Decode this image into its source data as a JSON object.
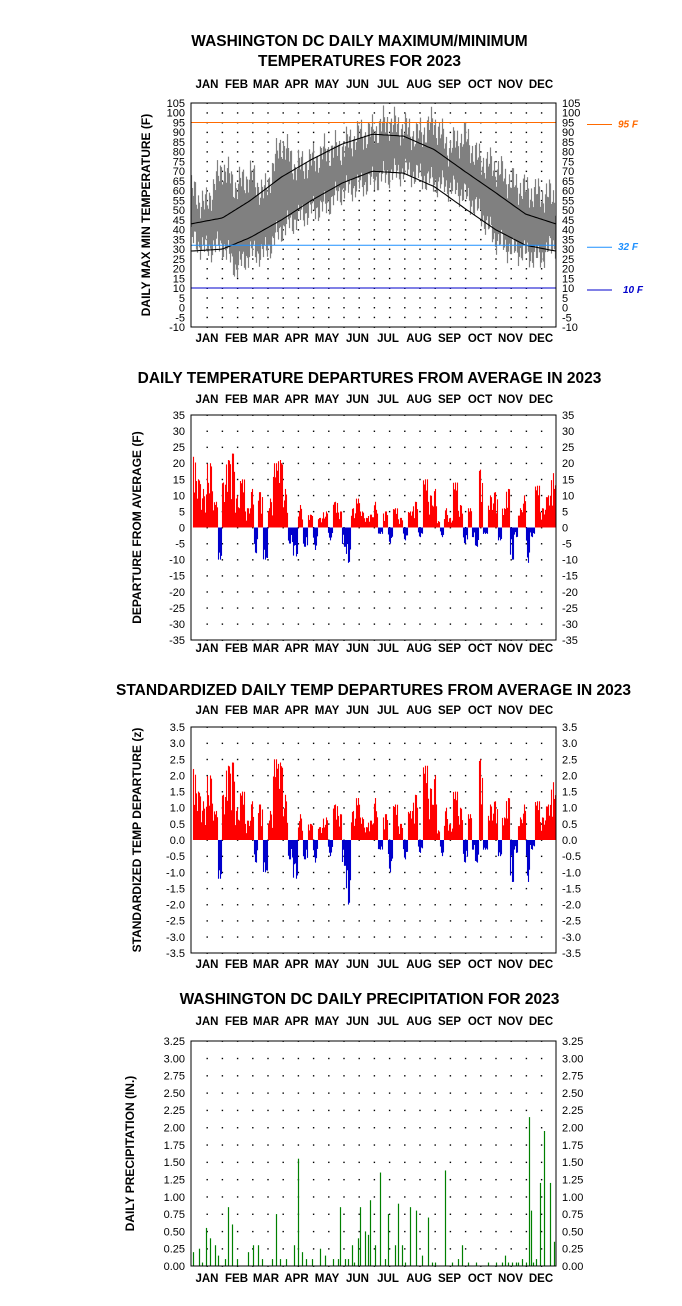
{
  "months": [
    "JAN",
    "FEB",
    "MAR",
    "APR",
    "MAY",
    "JUN",
    "JUL",
    "AUG",
    "SEP",
    "OCT",
    "NOV",
    "DEC"
  ],
  "colors": {
    "temp_band": "#808080",
    "normals": "#000000",
    "warm": "#ff0000",
    "cold": "#0000cc",
    "precip": "#008000",
    "line95": "#ff6a00",
    "line32": "#1e90ff",
    "line10": "#0000cc"
  },
  "chart_data": [
    {
      "id": "temp",
      "type": "area",
      "title": [
        "WASHINGTON DC DAILY MAXIMUM/MINIMUM",
        "TEMPERATURES FOR 2023"
      ],
      "ylabel": "DAILY MAX MIN TEMPERATURE (F)",
      "ylim": [
        -10,
        105
      ],
      "yticks": [
        -10,
        -5,
        0,
        5,
        10,
        15,
        20,
        25,
        30,
        35,
        40,
        45,
        50,
        55,
        60,
        65,
        70,
        75,
        80,
        85,
        90,
        95,
        100,
        105
      ],
      "grid": "dotted",
      "reference_lines": [
        {
          "value": 95,
          "label": "95 F",
          "color": "#ff6a00"
        },
        {
          "value": 32,
          "label": "32 F",
          "color": "#1e90ff"
        },
        {
          "value": 10,
          "label": "10 F",
          "color": "#0000cc"
        }
      ],
      "series": [
        {
          "name": "",
          "kind": "observed_max_min_band",
          "color": "#808080",
          "x": [
            1,
            15,
            32,
            46,
            60,
            74,
            91,
            105,
            121,
            135,
            152,
            166,
            182,
            196,
            213,
            227,
            244,
            258,
            274,
            288,
            305,
            319,
            335,
            349,
            365
          ],
          "max": [
            60,
            52,
            72,
            62,
            68,
            58,
            85,
            72,
            75,
            80,
            82,
            88,
            90,
            95,
            92,
            88,
            95,
            82,
            88,
            76,
            72,
            65,
            60,
            58,
            57
          ],
          "min": [
            35,
            30,
            32,
            20,
            28,
            28,
            40,
            45,
            50,
            52,
            60,
            62,
            65,
            68,
            70,
            68,
            64,
            62,
            58,
            50,
            35,
            30,
            28,
            25,
            33
          ]
        },
        {
          "name": "",
          "kind": "normal_high",
          "color": "#000000",
          "x": [
            1,
            32,
            60,
            91,
            121,
            152,
            182,
            213,
            244,
            274,
            305,
            335,
            365
          ],
          "values": [
            43,
            46,
            55,
            67,
            76,
            84,
            89,
            88,
            81,
            70,
            59,
            48,
            43
          ]
        },
        {
          "name": "",
          "kind": "normal_low",
          "color": "#000000",
          "x": [
            1,
            32,
            60,
            91,
            121,
            152,
            182,
            213,
            244,
            274,
            305,
            335,
            365
          ],
          "values": [
            29,
            30,
            36,
            45,
            55,
            64,
            70,
            69,
            62,
            51,
            40,
            32,
            29
          ]
        }
      ]
    },
    {
      "id": "dep",
      "type": "bar",
      "title": [
        "DAILY TEMPERATURE DEPARTURES FROM AVERAGE IN 2023"
      ],
      "ylabel": "DEPARTURE FROM AVERAGE (F)",
      "ylim": [
        -35,
        35
      ],
      "yticks": [
        -35,
        -30,
        -25,
        -20,
        -15,
        -10,
        -5,
        0,
        5,
        10,
        15,
        20,
        25,
        30,
        35
      ],
      "grid": "dotted",
      "series": [
        {
          "name": "",
          "color_positive": "#ff0000",
          "color_negative": "#0000cc",
          "x": [
            3,
            8,
            13,
            20,
            26,
            30,
            33,
            38,
            42,
            47,
            52,
            57,
            62,
            66,
            70,
            75,
            80,
            86,
            90,
            95,
            100,
            106,
            110,
            115,
            120,
            125,
            130,
            136,
            140,
            145,
            150,
            154,
            158,
            163,
            168,
            172,
            176,
            180,
            185,
            190,
            195,
            200,
            205,
            210,
            215,
            220,
            225,
            230,
            235,
            240,
            245,
            248,
            252,
            256,
            260,
            265,
            270,
            275,
            280,
            283,
            287,
            290,
            295,
            300,
            305,
            310,
            314,
            318,
            322,
            326,
            330,
            334,
            338,
            342,
            347,
            352,
            358,
            363
          ],
          "values": [
            22,
            15,
            12,
            20,
            8,
            -10,
            14,
            21,
            23,
            10,
            15,
            6,
            12,
            -8,
            11,
            -10,
            9,
            20,
            21,
            12,
            -5,
            -9,
            7,
            -6,
            4,
            -7,
            3,
            5,
            -4,
            8,
            5,
            -6,
            -11,
            6,
            9,
            5,
            3,
            4,
            8,
            -2,
            5,
            -5,
            6,
            3,
            -4,
            5,
            8,
            -3,
            15,
            10,
            12,
            2,
            -3,
            6,
            3,
            14,
            7,
            -5,
            6,
            -3,
            -6,
            18,
            -2,
            10,
            11,
            -4,
            6,
            12,
            -10,
            -3,
            6,
            10,
            -11,
            -3,
            13,
            6,
            10,
            17
          ]
        }
      ]
    },
    {
      "id": "std",
      "type": "bar",
      "title": [
        "STANDARDIZED DAILY TEMP DEPARTURES FROM AVERAGE IN 2023"
      ],
      "ylabel": "STANDARDIZED TEMP DEPARTURE (z)",
      "ylim": [
        -3.5,
        3.5
      ],
      "yticks": [
        -3.5,
        -3.0,
        -2.5,
        -2.0,
        -1.5,
        -1.0,
        -0.5,
        0.0,
        0.5,
        1.0,
        1.5,
        2.0,
        2.5,
        3.0,
        3.5
      ],
      "grid": "dotted",
      "series": [
        {
          "name": "",
          "color_positive": "#ff0000",
          "color_negative": "#0000cc",
          "x": [
            3,
            8,
            13,
            20,
            26,
            30,
            33,
            38,
            42,
            47,
            52,
            57,
            62,
            66,
            70,
            75,
            80,
            86,
            90,
            95,
            100,
            106,
            110,
            115,
            120,
            125,
            130,
            136,
            140,
            145,
            150,
            154,
            158,
            163,
            168,
            172,
            176,
            180,
            185,
            190,
            195,
            200,
            205,
            210,
            215,
            220,
            225,
            230,
            235,
            240,
            245,
            248,
            252,
            256,
            260,
            265,
            270,
            275,
            280,
            283,
            287,
            290,
            295,
            300,
            305,
            310,
            314,
            318,
            322,
            326,
            330,
            334,
            338,
            342,
            347,
            352,
            358,
            363
          ],
          "values": [
            2.2,
            1.5,
            1.2,
            2.0,
            0.9,
            -1.2,
            1.4,
            2.3,
            2.4,
            1.0,
            1.5,
            0.6,
            1.2,
            -0.7,
            1.1,
            -1.0,
            0.9,
            2.5,
            2.4,
            1.4,
            -0.6,
            -1.2,
            0.8,
            -0.6,
            0.5,
            -0.7,
            0.4,
            0.7,
            -0.5,
            1.1,
            0.8,
            -0.8,
            -2.0,
            0.9,
            1.3,
            0.7,
            0.4,
            0.6,
            1.3,
            -0.3,
            0.8,
            -1.0,
            1.1,
            0.5,
            -0.6,
            0.9,
            1.4,
            -0.4,
            2.3,
            1.6,
            2.0,
            0.3,
            -0.5,
            1.0,
            0.5,
            1.5,
            1.0,
            -0.7,
            0.8,
            -0.3,
            -0.7,
            2.5,
            -0.3,
            1.1,
            1.2,
            -0.5,
            0.7,
            1.3,
            -1.3,
            -0.4,
            0.7,
            1.1,
            -1.3,
            -0.3,
            1.2,
            0.7,
            1.1,
            1.8
          ]
        }
      ]
    },
    {
      "id": "precip",
      "type": "bar",
      "title": [
        "WASHINGTON DC DAILY PRECIPITATION FOR 2023"
      ],
      "ylabel": "DAILY PRECIPITATION (IN.)",
      "ylim": [
        0.0,
        3.25
      ],
      "yticks": [
        0.0,
        0.25,
        0.5,
        0.75,
        1.0,
        1.25,
        1.5,
        1.75,
        2.0,
        2.25,
        2.5,
        2.75,
        3.0,
        3.25
      ],
      "grid": "dotted",
      "series": [
        {
          "name": "",
          "color": "#008000",
          "x": [
            3,
            9,
            12,
            16,
            20,
            25,
            28,
            35,
            38,
            42,
            47,
            58,
            63,
            68,
            72,
            82,
            86,
            90,
            96,
            104,
            108,
            112,
            116,
            122,
            130,
            135,
            143,
            148,
            150,
            155,
            158,
            162,
            164,
            168,
            170,
            175,
            178,
            180,
            185,
            190,
            195,
            198,
            205,
            208,
            212,
            215,
            220,
            226,
            232,
            238,
            242,
            245,
            255,
            262,
            268,
            272,
            278,
            286,
            298,
            306,
            312,
            315,
            318,
            322,
            326,
            328,
            332,
            336,
            339,
            341,
            343,
            346,
            350,
            354,
            360,
            364
          ],
          "values": [
            0.2,
            0.25,
            0.05,
            0.55,
            0.4,
            0.3,
            0.15,
            0.1,
            0.85,
            0.6,
            0.1,
            0.2,
            0.3,
            0.3,
            0.1,
            0.1,
            0.75,
            0.1,
            0.1,
            0.3,
            1.55,
            0.2,
            0.1,
            0.1,
            0.25,
            0.15,
            0.1,
            0.1,
            0.85,
            0.1,
            0.1,
            0.3,
            0.05,
            0.4,
            0.85,
            0.5,
            0.45,
            0.95,
            0.3,
            1.35,
            0.1,
            0.75,
            0.3,
            0.9,
            0.3,
            0.05,
            0.85,
            0.8,
            0.15,
            0.7,
            0.05,
            0.05,
            1.38,
            0.05,
            0.1,
            0.3,
            0.05,
            0.05,
            0.05,
            0.05,
            0.05,
            0.15,
            0.05,
            0.05,
            0.05,
            0.05,
            0.1,
            0.05,
            2.15,
            0.8,
            0.05,
            0.1,
            1.2,
            1.95,
            1.2,
            0.35
          ]
        }
      ]
    }
  ]
}
